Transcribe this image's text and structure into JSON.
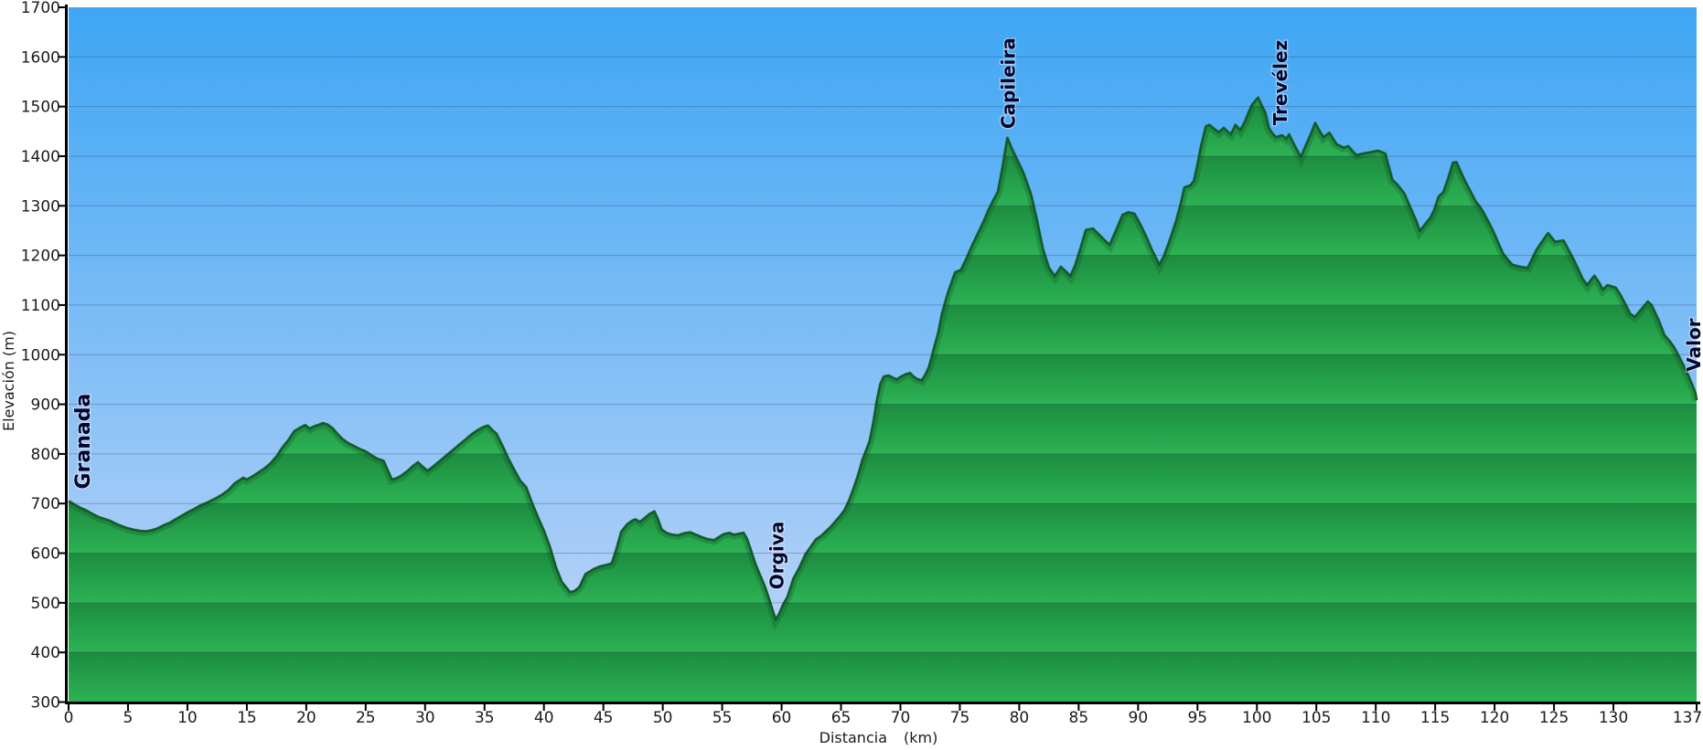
{
  "chart_data": {
    "type": "area",
    "title": "",
    "xlabel": "Distancia",
    "xlabel_unit": "(km)",
    "ylabel": "Elevación (m)",
    "xlim": [
      0,
      137
    ],
    "ylim": [
      300,
      1700
    ],
    "x_ticks": [
      0,
      5,
      10,
      15,
      20,
      25,
      30,
      35,
      40,
      45,
      50,
      55,
      60,
      65,
      70,
      75,
      80,
      85,
      90,
      95,
      100,
      105,
      110,
      115,
      120,
      125,
      130,
      137
    ],
    "y_ticks": [
      300,
      400,
      500,
      600,
      700,
      800,
      900,
      1000,
      1100,
      1200,
      1300,
      1400,
      1500,
      1600,
      1700
    ],
    "grid": "horizontal",
    "legend": "none",
    "waypoints": [
      {
        "name": "Granada",
        "km": 0,
        "elev": 705,
        "label_km": 1.15,
        "label_base_elev": 729,
        "size": 22
      },
      {
        "name": "Orgiva",
        "km": 59.5,
        "elev": 466,
        "label_km": 59.55,
        "label_base_elev": 527,
        "size": 20
      },
      {
        "name": "Capileira",
        "km": 79,
        "elev": 1437,
        "label_km": 79.0,
        "label_base_elev": 1455,
        "size": 20
      },
      {
        "name": "Trevélez",
        "km": 100.1,
        "elev": 1518,
        "label_km": 101.9,
        "label_base_elev": 1462,
        "size": 20
      },
      {
        "name": "Valor",
        "km": 137,
        "elev": 908,
        "label_km": 136.7,
        "label_base_elev": 966,
        "size": 20
      }
    ],
    "profile": [
      [
        0,
        705
      ],
      [
        0.5,
        698
      ],
      [
        1,
        691
      ],
      [
        1.5,
        686
      ],
      [
        2,
        679
      ],
      [
        2.5,
        673
      ],
      [
        3,
        669
      ],
      [
        3.5,
        665
      ],
      [
        4,
        659
      ],
      [
        4.5,
        654
      ],
      [
        5,
        650
      ],
      [
        5.5,
        647
      ],
      [
        6,
        645
      ],
      [
        6.5,
        644
      ],
      [
        7,
        646
      ],
      [
        7.5,
        650
      ],
      [
        8,
        656
      ],
      [
        8.5,
        661
      ],
      [
        9,
        668
      ],
      [
        9.5,
        675
      ],
      [
        10,
        682
      ],
      [
        10.5,
        688
      ],
      [
        11,
        695
      ],
      [
        11.5,
        700
      ],
      [
        12,
        706
      ],
      [
        12.5,
        712
      ],
      [
        13,
        719
      ],
      [
        13.5,
        728
      ],
      [
        14,
        741
      ],
      [
        14.7,
        752
      ],
      [
        15,
        748
      ],
      [
        15.5,
        755
      ],
      [
        16,
        763
      ],
      [
        16.5,
        771
      ],
      [
        17,
        781
      ],
      [
        17.5,
        795
      ],
      [
        18,
        813
      ],
      [
        18.5,
        828
      ],
      [
        19,
        846
      ],
      [
        19.5,
        853
      ],
      [
        19.9,
        858
      ],
      [
        20.3,
        851
      ],
      [
        20.7,
        856
      ],
      [
        21,
        858
      ],
      [
        21.4,
        862
      ],
      [
        21.8,
        859
      ],
      [
        22.2,
        852
      ],
      [
        22.6,
        841
      ],
      [
        23,
        831
      ],
      [
        23.5,
        822
      ],
      [
        24,
        816
      ],
      [
        24.5,
        810
      ],
      [
        25,
        805
      ],
      [
        25.5,
        797
      ],
      [
        26,
        790
      ],
      [
        26.5,
        786
      ],
      [
        26.8,
        770
      ],
      [
        27.2,
        748
      ],
      [
        27.6,
        751
      ],
      [
        28,
        756
      ],
      [
        28.5,
        765
      ],
      [
        29,
        776
      ],
      [
        29.4,
        783
      ],
      [
        29.8,
        774
      ],
      [
        30.2,
        766
      ],
      [
        30.6,
        773
      ],
      [
        31,
        781
      ],
      [
        31.5,
        791
      ],
      [
        32,
        801
      ],
      [
        32.5,
        811
      ],
      [
        33,
        821
      ],
      [
        33.5,
        831
      ],
      [
        34,
        841
      ],
      [
        34.5,
        849
      ],
      [
        35,
        855
      ],
      [
        35.3,
        857
      ],
      [
        35.7,
        847
      ],
      [
        36,
        841
      ],
      [
        36.6,
        812
      ],
      [
        37,
        791
      ],
      [
        37.5,
        768
      ],
      [
        38,
        746
      ],
      [
        38.5,
        733
      ],
      [
        39,
        701
      ],
      [
        39.5,
        672
      ],
      [
        40,
        645
      ],
      [
        40.5,
        613
      ],
      [
        41,
        572
      ],
      [
        41.5,
        542
      ],
      [
        42.2,
        521
      ],
      [
        42.6,
        524
      ],
      [
        43,
        532
      ],
      [
        43.5,
        558
      ],
      [
        44.2,
        568
      ],
      [
        44.7,
        573
      ],
      [
        45.2,
        576
      ],
      [
        45.7,
        579
      ],
      [
        46.1,
        608
      ],
      [
        46.5,
        643
      ],
      [
        47,
        658
      ],
      [
        47.4,
        665
      ],
      [
        47.7,
        668
      ],
      [
        48.1,
        663
      ],
      [
        48.5,
        671
      ],
      [
        48.9,
        679
      ],
      [
        49.3,
        684
      ],
      [
        49.6,
        668
      ],
      [
        49.9,
        648
      ],
      [
        50.3,
        641
      ],
      [
        50.8,
        637
      ],
      [
        51.3,
        636
      ],
      [
        51.8,
        640
      ],
      [
        52.3,
        642
      ],
      [
        52.8,
        637
      ],
      [
        53.3,
        632
      ],
      [
        53.8,
        628
      ],
      [
        54.3,
        626
      ],
      [
        54.7,
        632
      ],
      [
        55.1,
        638
      ],
      [
        55.6,
        641
      ],
      [
        56,
        637
      ],
      [
        56.4,
        639
      ],
      [
        56.8,
        641
      ],
      [
        57.1,
        628
      ],
      [
        57.4,
        607
      ],
      [
        57.8,
        578
      ],
      [
        58.2,
        555
      ],
      [
        58.6,
        532
      ],
      [
        59,
        503
      ],
      [
        59.5,
        466
      ],
      [
        59.8,
        478
      ],
      [
        60.1,
        495
      ],
      [
        60.5,
        512
      ],
      [
        61,
        549
      ],
      [
        61.5,
        571
      ],
      [
        62,
        597
      ],
      [
        62.5,
        614
      ],
      [
        62.9,
        628
      ],
      [
        63.3,
        634
      ],
      [
        63.7,
        643
      ],
      [
        64.1,
        652
      ],
      [
        64.5,
        663
      ],
      [
        64.9,
        674
      ],
      [
        65.3,
        687
      ],
      [
        65.7,
        707
      ],
      [
        66.1,
        733
      ],
      [
        66.5,
        762
      ],
      [
        66.8,
        788
      ],
      [
        67.1,
        806
      ],
      [
        67.4,
        825
      ],
      [
        67.7,
        860
      ],
      [
        68,
        905
      ],
      [
        68.3,
        940
      ],
      [
        68.6,
        956
      ],
      [
        69,
        958
      ],
      [
        69.4,
        953
      ],
      [
        69.7,
        950
      ],
      [
        70,
        955
      ],
      [
        70.4,
        960
      ],
      [
        70.8,
        963
      ],
      [
        71.1,
        956
      ],
      [
        71.4,
        951
      ],
      [
        71.8,
        948
      ],
      [
        72.1,
        960
      ],
      [
        72.4,
        975
      ],
      [
        72.8,
        1011
      ],
      [
        73.2,
        1046
      ],
      [
        73.5,
        1083
      ],
      [
        74,
        1125
      ],
      [
        74.6,
        1166
      ],
      [
        75.1,
        1171
      ],
      [
        75.6,
        1196
      ],
      [
        76.1,
        1223
      ],
      [
        76.6,
        1248
      ],
      [
        77,
        1268
      ],
      [
        77.4,
        1291
      ],
      [
        77.8,
        1310
      ],
      [
        78.2,
        1328
      ],
      [
        78.6,
        1378
      ],
      [
        79,
        1437
      ],
      [
        79.4,
        1414
      ],
      [
        79.9,
        1389
      ],
      [
        80.3,
        1369
      ],
      [
        80.6,
        1350
      ],
      [
        81,
        1322
      ],
      [
        81.5,
        1270
      ],
      [
        82,
        1212
      ],
      [
        82.5,
        1175
      ],
      [
        83,
        1158
      ],
      [
        83.5,
        1177
      ],
      [
        84,
        1166
      ],
      [
        84.3,
        1158
      ],
      [
        84.7,
        1180
      ],
      [
        85.1,
        1210
      ],
      [
        85.6,
        1251
      ],
      [
        86.2,
        1254
      ],
      [
        86.7,
        1242
      ],
      [
        87.2,
        1230
      ],
      [
        87.6,
        1221
      ],
      [
        88.1,
        1248
      ],
      [
        88.7,
        1282
      ],
      [
        89.2,
        1287
      ],
      [
        89.7,
        1284
      ],
      [
        90.2,
        1262
      ],
      [
        90.7,
        1237
      ],
      [
        91.2,
        1209
      ],
      [
        91.8,
        1181
      ],
      [
        92.2,
        1200
      ],
      [
        92.6,
        1226
      ],
      [
        93.2,
        1269
      ],
      [
        93.6,
        1305
      ],
      [
        93.9,
        1337
      ],
      [
        94.4,
        1341
      ],
      [
        94.7,
        1350
      ],
      [
        95,
        1383
      ],
      [
        95.3,
        1420
      ],
      [
        95.7,
        1460
      ],
      [
        96,
        1463
      ],
      [
        96.4,
        1455
      ],
      [
        96.8,
        1448
      ],
      [
        97.2,
        1457
      ],
      [
        97.5,
        1450
      ],
      [
        97.8,
        1444
      ],
      [
        98.2,
        1463
      ],
      [
        98.6,
        1452
      ],
      [
        99,
        1470
      ],
      [
        99.3,
        1488
      ],
      [
        99.6,
        1504
      ],
      [
        100.1,
        1518
      ],
      [
        100.4,
        1502
      ],
      [
        100.7,
        1488
      ],
      [
        101,
        1457
      ],
      [
        101.3,
        1446
      ],
      [
        101.6,
        1438
      ],
      [
        102.1,
        1442
      ],
      [
        102.5,
        1435
      ],
      [
        102.7,
        1444
      ],
      [
        103.2,
        1420
      ],
      [
        103.7,
        1398
      ],
      [
        104.2,
        1426
      ],
      [
        104.6,
        1448
      ],
      [
        104.9,
        1467
      ],
      [
        105.3,
        1450
      ],
      [
        105.6,
        1438
      ],
      [
        106.1,
        1447
      ],
      [
        106.7,
        1424
      ],
      [
        107.3,
        1417
      ],
      [
        107.7,
        1420
      ],
      [
        108.2,
        1406
      ],
      [
        108.4,
        1402
      ],
      [
        108.9,
        1405
      ],
      [
        109.6,
        1408
      ],
      [
        110.2,
        1411
      ],
      [
        110.8,
        1405
      ],
      [
        111.4,
        1352
      ],
      [
        111.8,
        1343
      ],
      [
        112.4,
        1325
      ],
      [
        112.9,
        1297
      ],
      [
        113.4,
        1270
      ],
      [
        113.7,
        1249
      ],
      [
        114,
        1258
      ],
      [
        114.2,
        1264
      ],
      [
        114.6,
        1276
      ],
      [
        114.9,
        1291
      ],
      [
        115.3,
        1319
      ],
      [
        115.7,
        1328
      ],
      [
        116.1,
        1356
      ],
      [
        116.5,
        1387
      ],
      [
        116.8,
        1388
      ],
      [
        117.2,
        1366
      ],
      [
        117.6,
        1346
      ],
      [
        118,
        1328
      ],
      [
        118.4,
        1309
      ],
      [
        118.8,
        1297
      ],
      [
        119.1,
        1285
      ],
      [
        119.5,
        1267
      ],
      [
        119.9,
        1248
      ],
      [
        120.3,
        1226
      ],
      [
        120.7,
        1204
      ],
      [
        121.1,
        1192
      ],
      [
        121.5,
        1181
      ],
      [
        122,
        1178
      ],
      [
        122.4,
        1176
      ],
      [
        122.8,
        1175
      ],
      [
        123.1,
        1190
      ],
      [
        123.5,
        1210
      ],
      [
        124,
        1228
      ],
      [
        124.5,
        1245
      ],
      [
        124.8,
        1236
      ],
      [
        125.1,
        1227
      ],
      [
        125.5,
        1229
      ],
      [
        125.8,
        1230
      ],
      [
        126.2,
        1212
      ],
      [
        126.6,
        1194
      ],
      [
        127,
        1174
      ],
      [
        127.4,
        1153
      ],
      [
        127.8,
        1140
      ],
      [
        128.1,
        1150
      ],
      [
        128.4,
        1159
      ],
      [
        128.8,
        1145
      ],
      [
        129.1,
        1131
      ],
      [
        129.5,
        1140
      ],
      [
        129.8,
        1138
      ],
      [
        130.2,
        1135
      ],
      [
        130.6,
        1120
      ],
      [
        131,
        1102
      ],
      [
        131.4,
        1083
      ],
      [
        131.8,
        1076
      ],
      [
        132.3,
        1090
      ],
      [
        132.9,
        1107
      ],
      [
        133.2,
        1100
      ],
      [
        133.8,
        1070
      ],
      [
        134.3,
        1039
      ],
      [
        134.7,
        1028
      ],
      [
        135.1,
        1015
      ],
      [
        135.5,
        997
      ],
      [
        135.9,
        978
      ],
      [
        136.3,
        958
      ],
      [
        136.6,
        941
      ],
      [
        136.9,
        923
      ],
      [
        137,
        908
      ]
    ],
    "colors": {
      "sky_top": "#3ea6f4",
      "sky_bottom": "#c4d7f8",
      "terrain_band_top": "#1d8c40",
      "terrain_band_mid": "#24a049",
      "terrain_band_bottom": "#2db254",
      "terrain_edge": "#135d2a",
      "terrain_edge_shadow": "#0f5426",
      "grid_line": "#20204a",
      "axis_line": "#000000",
      "tick_text": "#1b1b1b",
      "waypoint_text": "#05052b"
    }
  }
}
